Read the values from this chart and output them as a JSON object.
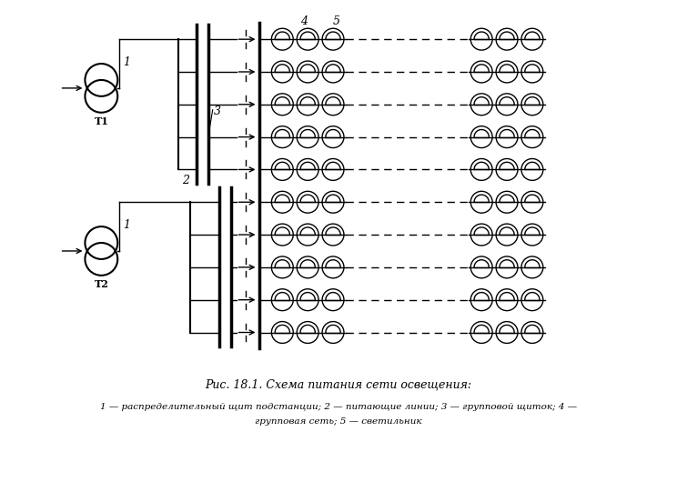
{
  "title": "Рис. 18.1. Схема питания сети освещения:",
  "caption_line1": "1 — распределительный щит подстанции; 2 — питающие линии; 3 — групповой щиток; 4 —",
  "caption_line2": "групповая сеть; 5 — светильник",
  "bg_color": "#ffffff"
}
